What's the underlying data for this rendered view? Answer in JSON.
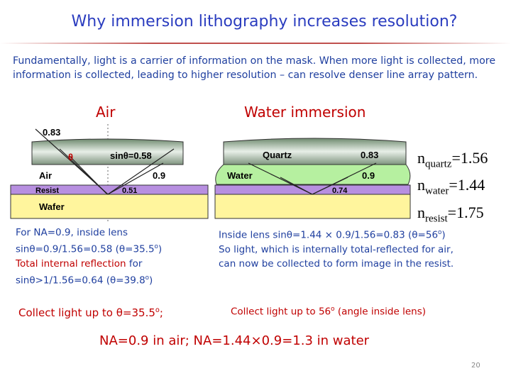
{
  "header": {
    "title": "Why immersion lithography increases resolution?"
  },
  "intro": "Fundamentally, light is a carrier of information on the mask. When more light is collected, more information is collected, leading to higher resolution – can resolve denser line array pattern.",
  "headings": {
    "air": "Air",
    "water": "Water immersion"
  },
  "diagram_air": {
    "top_value": "0.83",
    "theta": "θ",
    "sin": "sinθ=0.58",
    "medium": "Air",
    "medium_value": "0.9",
    "resist": "Resist",
    "resist_value": "0.51",
    "wafer": "Wafer"
  },
  "diagram_water": {
    "lens": "Quartz",
    "lens_value": "0.83",
    "medium": "Water",
    "medium_value": "0.9",
    "resist_value": "0.74"
  },
  "indices": [
    {
      "n": "n",
      "sub": "quartz",
      "value": "=1.56"
    },
    {
      "n": "n",
      "sub": "water",
      "value": "=1.44"
    },
    {
      "n": "n",
      "sub": "resist",
      "value": "=1.75"
    }
  ],
  "left_text": [
    [
      "For NA=0.9, inside lens"
    ],
    [
      "sinθ=0.9/1.56=0.58 (θ=35.5",
      "o",
      ")"
    ],
    [
      "Total internal reflection",
      " for"
    ],
    [
      "sinθ>1/1.56=0.64 (θ=39.8",
      "o",
      ")"
    ]
  ],
  "right_text": [
    [
      "Inside lens sinθ=1.44 × 0.9/1.56=0.83 (θ=56",
      "o",
      ")"
    ],
    [
      "So light, which is internally total-reflected for air, can now be collected to form image in the resist."
    ]
  ],
  "collect_left": [
    "Collect light up to θ=35.5",
    "o",
    ";"
  ],
  "collect_right": [
    "Collect light up to 56",
    "o",
    " (angle inside lens)"
  ],
  "conclusion": "NA=0.9 in air; NA=1.44×0.9=1.3 in water",
  "footer": {
    "page": "20"
  }
}
